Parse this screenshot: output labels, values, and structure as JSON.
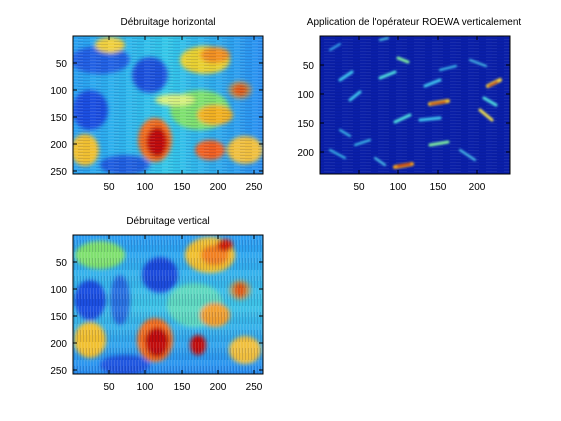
{
  "chart_data": [
    {
      "type": "heatmap",
      "title": "Débruitage horizontal",
      "x_ticks": [
        50,
        100,
        150,
        200,
        250
      ],
      "y_ticks": [
        50,
        100,
        150,
        200,
        250
      ],
      "xlim": [
        1,
        256
      ],
      "ylim": [
        1,
        256
      ],
      "y_reversed": true,
      "colormap": "jet",
      "texture": "horizontal-streaks"
    },
    {
      "type": "heatmap",
      "title": "Application de l'opérateur ROEWA verticalement",
      "x_ticks": [
        50,
        100,
        150,
        200
      ],
      "y_ticks": [
        50,
        100,
        150,
        200
      ],
      "xlim": [
        1,
        240
      ],
      "ylim": [
        1,
        240
      ],
      "y_reversed": true,
      "colormap": "jet",
      "texture": "edge-map"
    },
    {
      "type": "heatmap",
      "title": "Débruitage vertical",
      "x_ticks": [
        50,
        100,
        150,
        200,
        250
      ],
      "y_ticks": [
        50,
        100,
        150,
        200,
        250
      ],
      "xlim": [
        1,
        256
      ],
      "ylim": [
        1,
        256
      ],
      "y_reversed": true,
      "colormap": "jet",
      "texture": "vertical-streaks"
    }
  ]
}
